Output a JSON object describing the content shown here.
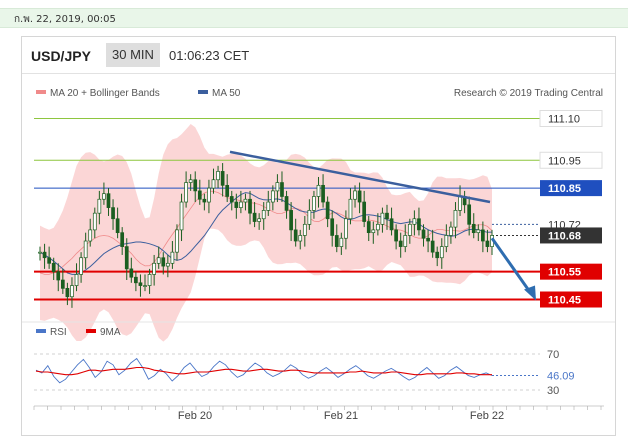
{
  "header_date": "ก.พ. 22, 2019, 00:05",
  "symbol": "USD/JPY",
  "timeframe": "30 MIN",
  "clock": "01:06:23 CET",
  "credit": "Research © 2019 Trading Central",
  "colors": {
    "green_level": "#8ec63f",
    "blue_level": "#1f4fbf",
    "red_level": "#e00000",
    "candle": "#1b5e20",
    "band_fill": "#f9c8c8",
    "ma50": "#3b5f9e",
    "rsi": "#4a76c8",
    "rsi_ma": "#e00000"
  },
  "chart_data": [
    {
      "type": "candlestick",
      "legend": [
        {
          "label": "MA 20 + Bollinger Bands",
          "color": "#f08a8a"
        },
        {
          "label": "MA 50",
          "color": "#3b5f9e"
        }
      ],
      "ylim": [
        110.38,
        111.17
      ],
      "x_ticks": [
        "Feb 20",
        "Feb 21",
        "Feb 22"
      ],
      "levels": [
        {
          "label": "110.95",
          "value": 110.95,
          "style": "green"
        },
        {
          "label": "110.85",
          "value": 110.85,
          "style": "blue"
        },
        {
          "label": "110.55",
          "value": 110.55,
          "style": "red"
        },
        {
          "label": "110.45",
          "value": 110.45,
          "style": "red"
        },
        {
          "label": "111.10",
          "value": 111.1,
          "style": "green"
        }
      ],
      "price_labels": [
        {
          "label": "110.72",
          "value": 110.72,
          "style": "plain"
        },
        {
          "label": "110.68",
          "value": 110.68,
          "style": "dark"
        }
      ],
      "trendline": {
        "start": [
          "Feb 20",
          110.98
        ],
        "end": [
          "Feb 22",
          110.8
        ]
      },
      "projection": {
        "from": 110.67,
        "to": 110.45
      },
      "close_path": [
        110.62,
        110.6,
        110.58,
        110.55,
        110.52,
        110.49,
        110.46,
        110.5,
        110.54,
        110.6,
        110.66,
        110.7,
        110.76,
        110.81,
        110.83,
        110.78,
        110.74,
        110.69,
        110.64,
        110.56,
        110.53,
        110.51,
        110.5,
        110.5,
        110.54,
        110.58,
        110.6,
        110.57,
        110.58,
        110.62,
        110.7,
        110.8,
        110.87,
        110.88,
        110.84,
        110.81,
        110.8,
        110.85,
        110.88,
        110.91,
        110.86,
        110.82,
        110.8,
        110.78,
        110.8,
        110.81,
        110.76,
        110.73,
        110.74,
        110.77,
        110.8,
        110.84,
        110.87,
        110.82,
        110.77,
        110.7,
        110.66,
        110.68,
        110.72,
        110.77,
        110.82,
        110.86,
        110.8,
        110.74,
        110.68,
        110.64,
        110.67,
        110.74,
        110.81,
        110.84,
        110.8,
        110.73,
        110.69,
        110.7,
        110.72,
        110.76,
        110.74,
        110.7,
        110.66,
        110.64,
        110.68,
        110.72,
        110.74,
        110.7,
        110.67,
        110.66,
        110.62,
        110.6,
        110.64,
        110.68,
        110.71,
        110.77,
        110.82,
        110.79,
        110.72,
        110.69,
        110.7,
        110.66,
        110.64,
        110.68
      ]
    },
    {
      "type": "line",
      "legend": [
        {
          "label": "RSI",
          "color": "#4a76c8"
        },
        {
          "label": "9MA",
          "color": "#e00000"
        }
      ],
      "ticks": [
        70,
        30
      ],
      "ylim": [
        20,
        80
      ],
      "last_label": "46.09",
      "series": [
        {
          "name": "RSI",
          "values": [
            52,
            49,
            57,
            45,
            38,
            42,
            50,
            58,
            64,
            55,
            44,
            50,
            62,
            58,
            47,
            52,
            60,
            65,
            55,
            42,
            46,
            53,
            48,
            40,
            46,
            55,
            60,
            52,
            45,
            48,
            56,
            62,
            58,
            50,
            44,
            47,
            54,
            60,
            56,
            49,
            45,
            48,
            52,
            58,
            54,
            47,
            43,
            46,
            51,
            55,
            50,
            44,
            48,
            53,
            57,
            52,
            46,
            43,
            47,
            51,
            54,
            50,
            45,
            41,
            44,
            50,
            55,
            49,
            43,
            46,
            52,
            56,
            51,
            46,
            44,
            47,
            49,
            46.09
          ]
        },
        {
          "name": "9MA",
          "values": [
            51,
            50,
            50,
            49,
            48,
            47,
            47,
            48,
            50,
            52,
            52,
            51,
            52,
            53,
            53,
            53,
            54,
            55,
            55,
            54,
            52,
            51,
            50,
            49,
            48,
            48,
            49,
            50,
            50,
            50,
            51,
            52,
            53,
            53,
            52,
            51,
            51,
            52,
            53,
            53,
            52,
            51,
            51,
            52,
            52,
            51,
            50,
            49,
            49,
            49,
            49,
            49,
            49,
            50,
            50,
            51,
            50,
            49,
            49,
            49,
            50,
            50,
            49,
            48,
            47,
            47,
            48,
            48,
            48,
            48,
            48,
            49,
            49,
            48,
            48,
            47,
            47,
            47
          ]
        }
      ]
    }
  ]
}
